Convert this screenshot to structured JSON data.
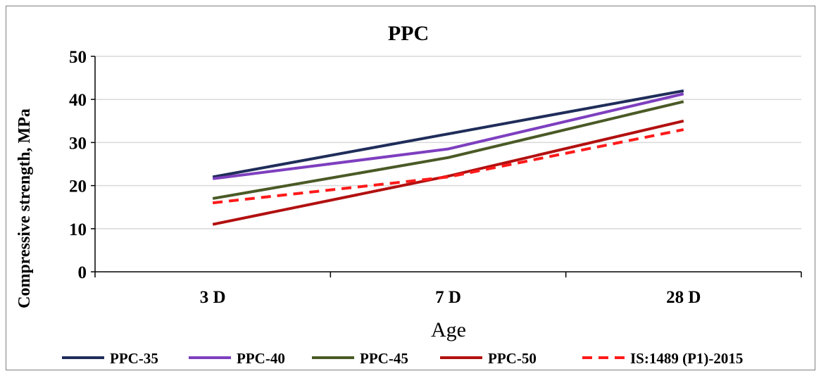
{
  "chart_data": {
    "type": "line",
    "title": "PPC",
    "xlabel": "Age",
    "ylabel": "Compressive strength, MPa",
    "categories": [
      "3 D",
      "7 D",
      "28 D"
    ],
    "ylim": [
      0,
      50
    ],
    "yticks": [
      0,
      10,
      20,
      30,
      40,
      50
    ],
    "grid": true,
    "legend_position": "bottom",
    "series": [
      {
        "name": "PPC-35",
        "values": [
          22,
          32,
          42
        ],
        "color": "#1f2d5a",
        "dashed": false
      },
      {
        "name": "PPC-40",
        "values": [
          21.6,
          28.5,
          41.3
        ],
        "color": "#7e3fbf",
        "dashed": false
      },
      {
        "name": "PPC-45",
        "values": [
          17,
          26.5,
          39.5
        ],
        "color": "#4a5a26",
        "dashed": false
      },
      {
        "name": "PPC-50",
        "values": [
          11,
          22.2,
          35
        ],
        "color": "#b21010",
        "dashed": false
      },
      {
        "name": "IS:1489 (P1)-2015",
        "values": [
          16,
          22,
          33
        ],
        "color": "#ff1a1a",
        "dashed": true
      }
    ]
  }
}
